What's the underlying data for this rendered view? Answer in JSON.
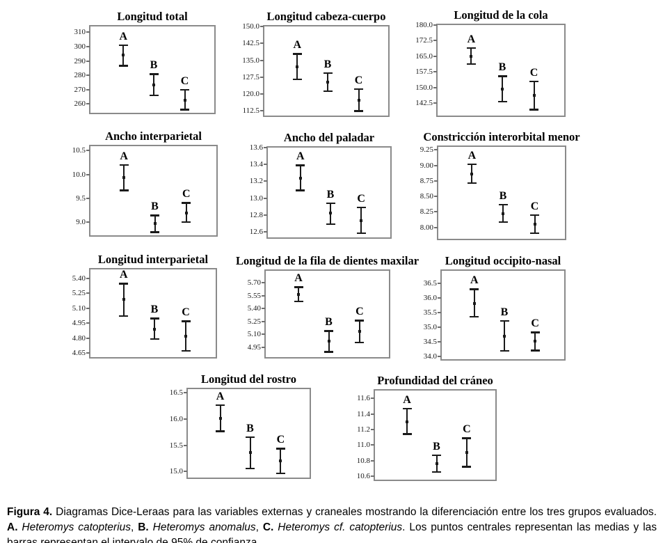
{
  "figure": {
    "caption_segments": [
      {
        "text": "Figura 4.",
        "bold": true
      },
      {
        "text": " Diagramas Dice-Leraas para las variables externas y craneales mostrando la diferenciación entre los tres grupos evaluados. "
      },
      {
        "text": "A.",
        "bold": true
      },
      {
        "text": " "
      },
      {
        "text": "Heteromys catopterius",
        "italic": true
      },
      {
        "text": ", "
      },
      {
        "text": "B.",
        "bold": true
      },
      {
        "text": " "
      },
      {
        "text": "Heteromys anomalus",
        "italic": true
      },
      {
        "text": ", "
      },
      {
        "text": "C.",
        "bold": true
      },
      {
        "text": " "
      },
      {
        "text": "Heteromys cf. catopterius",
        "italic": true
      },
      {
        "text": ". Los puntos centrales representan las medias y las barras representan el intervalo de 95% de confianza."
      }
    ]
  },
  "chart_data": [
    {
      "type": "errorbar",
      "title": "Longitud total",
      "ylabel": "",
      "grid": false,
      "ylim": [
        252,
        314
      ],
      "yticks": [
        {
          "label": "310",
          "value": 310
        },
        {
          "label": "300",
          "value": 300
        },
        {
          "label": "290",
          "value": 290
        },
        {
          "label": "280",
          "value": 280
        },
        {
          "label": "270",
          "value": 270
        },
        {
          "label": "260",
          "value": 260
        }
      ],
      "groups": [
        {
          "label": "A",
          "mean": 294.0,
          "ci_low": 286.5,
          "ci_high": 301.0
        },
        {
          "label": "B",
          "mean": 273.5,
          "ci_low": 266.0,
          "ci_high": 281.0
        },
        {
          "label": "C",
          "mean": 262.5,
          "ci_low": 256.0,
          "ci_high": 270.0
        }
      ]
    },
    {
      "type": "errorbar",
      "title": "Longitud cabeza-cuerpo",
      "ylabel": "",
      "grid": false,
      "ylim": [
        109.2,
        150.0
      ],
      "yticks": [
        {
          "label": "150.0",
          "value": 150.0
        },
        {
          "label": "142.5",
          "value": 142.5
        },
        {
          "label": "135.0",
          "value": 135.0
        },
        {
          "label": "127.5",
          "value": 127.5
        },
        {
          "label": "120.0",
          "value": 120.0
        },
        {
          "label": "112.5",
          "value": 112.5
        }
      ],
      "groups": [
        {
          "label": "A",
          "mean": 132.1,
          "ci_low": 126.4,
          "ci_high": 137.9
        },
        {
          "label": "B",
          "mean": 125.3,
          "ci_low": 121.2,
          "ci_high": 129.4
        },
        {
          "label": "C",
          "mean": 117.3,
          "ci_low": 112.3,
          "ci_high": 122.3
        }
      ]
    },
    {
      "type": "errorbar",
      "title": "Longitud de la cola",
      "ylabel": "",
      "grid": false,
      "ylim": [
        135.3,
        180.0
      ],
      "yticks": [
        {
          "label": "180.0",
          "value": 180.0
        },
        {
          "label": "172.5",
          "value": 172.5
        },
        {
          "label": "165.0",
          "value": 165.0
        },
        {
          "label": "157.5",
          "value": 157.5
        },
        {
          "label": "150.0",
          "value": 150.0
        },
        {
          "label": "142.5",
          "value": 142.5
        }
      ],
      "groups": [
        {
          "label": "A",
          "mean": 165.1,
          "ci_low": 161.3,
          "ci_high": 169.0
        },
        {
          "label": "B",
          "mean": 149.3,
          "ci_low": 143.2,
          "ci_high": 155.5
        },
        {
          "label": "C",
          "mean": 146.2,
          "ci_low": 139.4,
          "ci_high": 153.1
        }
      ]
    },
    {
      "type": "errorbar",
      "title": "Ancho interparietal",
      "ylabel": "",
      "grid": false,
      "ylim": [
        8.67,
        10.59
      ],
      "yticks": [
        {
          "label": "10.5",
          "value": 10.5
        },
        {
          "label": "10.0",
          "value": 10.0
        },
        {
          "label": "9.5",
          "value": 9.5
        },
        {
          "label": "9.0",
          "value": 9.0
        }
      ],
      "groups": [
        {
          "label": "A",
          "mean": 9.93,
          "ci_low": 9.66,
          "ci_high": 10.2
        },
        {
          "label": "B",
          "mean": 8.97,
          "ci_low": 8.79,
          "ci_high": 9.15
        },
        {
          "label": "C",
          "mean": 9.2,
          "ci_low": 9.0,
          "ci_high": 9.41
        }
      ]
    },
    {
      "type": "errorbar",
      "title": "Ancho del paladar",
      "ylabel": "",
      "grid": false,
      "ylim": [
        12.5,
        13.6
      ],
      "yticks": [
        {
          "label": "13.6",
          "value": 13.6
        },
        {
          "label": "13.4",
          "value": 13.4
        },
        {
          "label": "13.2",
          "value": 13.2
        },
        {
          "label": "13.0",
          "value": 13.0
        },
        {
          "label": "12.8",
          "value": 12.8
        },
        {
          "label": "12.6",
          "value": 12.6
        }
      ],
      "groups": [
        {
          "label": "A",
          "mean": 13.24,
          "ci_low": 13.09,
          "ci_high": 13.39
        },
        {
          "label": "B",
          "mean": 12.82,
          "ci_low": 12.69,
          "ci_high": 12.94
        },
        {
          "label": "C",
          "mean": 12.73,
          "ci_low": 12.58,
          "ci_high": 12.89
        }
      ]
    },
    {
      "type": "errorbar",
      "title": "Constricción interorbital menor",
      "ylabel": "",
      "grid": false,
      "ylim": [
        7.77,
        9.3
      ],
      "yticks": [
        {
          "label": "9.25",
          "value": 9.25
        },
        {
          "label": "9.00",
          "value": 9.0
        },
        {
          "label": "8.75",
          "value": 8.75
        },
        {
          "label": "8.50",
          "value": 8.5
        },
        {
          "label": "8.25",
          "value": 8.25
        },
        {
          "label": "8.00",
          "value": 8.0
        }
      ],
      "groups": [
        {
          "label": "A",
          "mean": 8.86,
          "ci_low": 8.71,
          "ci_high": 9.02
        },
        {
          "label": "B",
          "mean": 8.22,
          "ci_low": 8.08,
          "ci_high": 8.37
        },
        {
          "label": "C",
          "mean": 8.05,
          "ci_low": 7.9,
          "ci_high": 8.2
        }
      ]
    },
    {
      "type": "errorbar",
      "title": "Longitud interparietal",
      "ylabel": "",
      "grid": false,
      "ylim": [
        4.58,
        5.49
      ],
      "yticks": [
        {
          "label": "5.40",
          "value": 5.4
        },
        {
          "label": "5.25",
          "value": 5.25
        },
        {
          "label": "5.10",
          "value": 5.1
        },
        {
          "label": "4.95",
          "value": 4.95
        },
        {
          "label": "4.80",
          "value": 4.8
        },
        {
          "label": "4.65",
          "value": 4.65
        }
      ],
      "groups": [
        {
          "label": "A",
          "mean": 5.19,
          "ci_low": 5.02,
          "ci_high": 5.35
        },
        {
          "label": "B",
          "mean": 4.89,
          "ci_low": 4.79,
          "ci_high": 5.0
        },
        {
          "label": "C",
          "mean": 4.82,
          "ci_low": 4.67,
          "ci_high": 4.97
        }
      ]
    },
    {
      "type": "errorbar",
      "title": "Longitud de la fila de dientes maxilar",
      "ylabel": "",
      "grid": false,
      "ylim": [
        4.8,
        5.84
      ],
      "yticks": [
        {
          "label": "5.70",
          "value": 5.7
        },
        {
          "label": "5.55",
          "value": 5.55
        },
        {
          "label": "5.40",
          "value": 5.4
        },
        {
          "label": "5.25",
          "value": 5.25
        },
        {
          "label": "5.10",
          "value": 5.1
        },
        {
          "label": "4.95",
          "value": 4.95
        }
      ],
      "groups": [
        {
          "label": "A",
          "mean": 5.56,
          "ci_low": 5.48,
          "ci_high": 5.65
        },
        {
          "label": "B",
          "mean": 5.02,
          "ci_low": 4.89,
          "ci_high": 5.14
        },
        {
          "label": "C",
          "mean": 5.13,
          "ci_low": 5.0,
          "ci_high": 5.26
        }
      ]
    },
    {
      "type": "errorbar",
      "title": "Longitud occipito-nasal",
      "ylabel": "",
      "grid": false,
      "ylim": [
        33.81,
        36.93
      ],
      "yticks": [
        {
          "label": "36.5",
          "value": 36.5
        },
        {
          "label": "36.0",
          "value": 36.0
        },
        {
          "label": "35.5",
          "value": 35.5
        },
        {
          "label": "35.0",
          "value": 35.0
        },
        {
          "label": "34.5",
          "value": 34.5
        },
        {
          "label": "34.0",
          "value": 34.0
        }
      ],
      "groups": [
        {
          "label": "A",
          "mean": 35.82,
          "ci_low": 35.35,
          "ci_high": 36.3
        },
        {
          "label": "B",
          "mean": 34.7,
          "ci_low": 34.18,
          "ci_high": 35.22
        },
        {
          "label": "C",
          "mean": 34.52,
          "ci_low": 34.2,
          "ci_high": 34.83
        }
      ]
    },
    {
      "type": "errorbar",
      "title": "Longitud del rostro",
      "ylabel": "",
      "grid": false,
      "ylim": [
        14.83,
        16.57
      ],
      "yticks": [
        {
          "label": "16.5",
          "value": 16.5
        },
        {
          "label": "16.0",
          "value": 16.0
        },
        {
          "label": "15.5",
          "value": 15.5
        },
        {
          "label": "15.0",
          "value": 15.0
        }
      ],
      "groups": [
        {
          "label": "A",
          "mean": 16.01,
          "ci_low": 15.76,
          "ci_high": 16.27
        },
        {
          "label": "B",
          "mean": 15.36,
          "ci_low": 15.05,
          "ci_high": 15.66
        },
        {
          "label": "C",
          "mean": 15.2,
          "ci_low": 14.96,
          "ci_high": 15.44
        }
      ]
    },
    {
      "type": "errorbar",
      "title": "Profundidad del cráneo",
      "ylabel": "",
      "grid": false,
      "ylim": [
        10.52,
        11.7
      ],
      "yticks": [
        {
          "label": "11.6",
          "value": 11.6
        },
        {
          "label": "11.4",
          "value": 11.4
        },
        {
          "label": "11.2",
          "value": 11.2
        },
        {
          "label": "11.0",
          "value": 11.0
        },
        {
          "label": "10.8",
          "value": 10.8
        },
        {
          "label": "10.6",
          "value": 10.6
        }
      ],
      "groups": [
        {
          "label": "A",
          "mean": 11.3,
          "ci_low": 11.14,
          "ci_high": 11.47
        },
        {
          "label": "B",
          "mean": 10.76,
          "ci_low": 10.65,
          "ci_high": 10.87
        },
        {
          "label": "C",
          "mean": 10.9,
          "ci_low": 10.72,
          "ci_high": 11.09
        }
      ]
    }
  ],
  "colors": {
    "bar": "#1a1a1a",
    "box_border": "#8a8a8a",
    "background": "#ffffff",
    "text": "#000000"
  }
}
